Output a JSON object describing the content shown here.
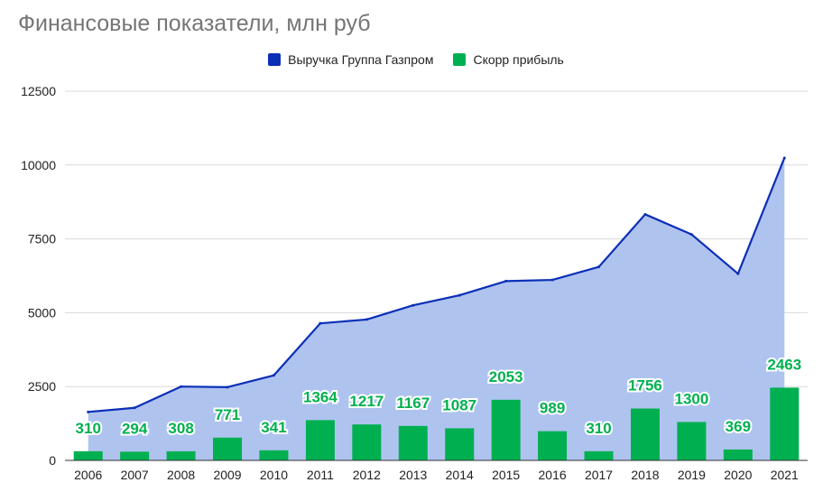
{
  "chart_data": {
    "type": "bar",
    "title": "Финансовые показатели, млн руб",
    "categories": [
      "2006",
      "2007",
      "2008",
      "2009",
      "2010",
      "2011",
      "2012",
      "2013",
      "2014",
      "2015",
      "2016",
      "2017",
      "2018",
      "2019",
      "2020",
      "2021"
    ],
    "series": [
      {
        "name": "Выручка Группа Газпром",
        "render": "area-line",
        "color": "#0b2fb7",
        "fill": "#afc3ef",
        "values": [
          1640,
          1780,
          2500,
          2480,
          2880,
          4640,
          4770,
          5250,
          5590,
          6070,
          6110,
          6550,
          8330,
          7650,
          6320,
          10240
        ]
      },
      {
        "name": "Скорр прибыль",
        "render": "bar",
        "color": "#00b050",
        "values": [
          310,
          294,
          308,
          771,
          341,
          1364,
          1217,
          1167,
          1087,
          2053,
          989,
          310,
          1756,
          1300,
          369,
          2463
        ],
        "data_labels": [
          "310",
          "294",
          "308",
          "771",
          "341",
          "1364",
          "1217",
          "1167",
          "1087",
          "2053",
          "989",
          "310",
          "1756",
          "1300",
          "369",
          "2463"
        ]
      }
    ],
    "ylim": [
      0,
      12500
    ],
    "yticks": [
      0,
      2500,
      5000,
      7500,
      10000,
      12500
    ],
    "ytick_labels": [
      "0",
      "2500",
      "5000",
      "7500",
      "10000",
      "12500"
    ],
    "grid": true,
    "legend_position": "top-center"
  }
}
